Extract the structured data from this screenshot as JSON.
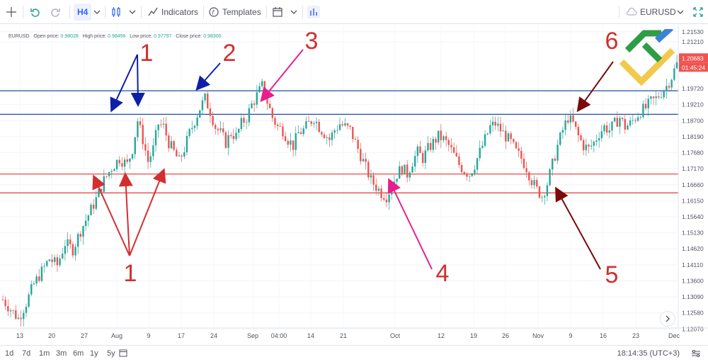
{
  "toolbar": {
    "interval": "H4",
    "indicators_label": "Indicators",
    "templates_label": "Templates",
    "symbol": "EURUSD"
  },
  "legend": {
    "symbol": "EURUSD",
    "open_label": "Open price:",
    "open_value": "0.98028",
    "high_label": "High price:",
    "high_value": "0.98456",
    "low_label": "Low price:",
    "low_value": "0.97797",
    "close_label": "Close price:",
    "close_value": "0.98300"
  },
  "bottom": {
    "ranges": [
      "1d",
      "7d",
      "1m",
      "3m",
      "6m",
      "1y",
      "5y"
    ],
    "clock": "18:14:35 (UTC+3)"
  },
  "colors": {
    "up": "#26a69a",
    "down": "#ef5350",
    "blue_level": "#1f4e9c",
    "red_level": "#e53935",
    "blue_arrow": "#0d1fa8",
    "red_arrow": "#d32f2f",
    "pink_arrow": "#e91e8c",
    "dark_arrow": "#7b0a0a"
  },
  "chart_data": {
    "type": "candlestick",
    "symbol": "EURUSD",
    "interval": "H4",
    "ylim": [
      1.121,
      1.2175
    ],
    "y_ticks": [
      "1.21530",
      "1.21210",
      "1.20683",
      "1.19720",
      "1.19210",
      "1.18700",
      "1.18190",
      "1.17680",
      "1.17170",
      "1.16660",
      "1.16150",
      "1.15640",
      "1.15130",
      "1.14620",
      "1.14110",
      "1.13600",
      "1.13090",
      "1.12580",
      "1.12070"
    ],
    "price_badge": "1.20683",
    "timer_badge": "01:45:24",
    "x_ticks": [
      "13",
      "20",
      "27",
      "Aug",
      "9",
      "17",
      "24",
      "Sep",
      "04:00",
      "14",
      "21",
      "Oct",
      "12",
      "19",
      "26",
      "Nov",
      "9",
      "16",
      "23",
      "Dec"
    ],
    "price_path": [
      [
        0,
        1.13
      ],
      [
        3,
        1.127
      ],
      [
        6,
        1.124
      ],
      [
        9,
        1.129
      ],
      [
        12,
        1.135
      ],
      [
        15,
        1.139
      ],
      [
        18,
        1.143
      ],
      [
        21,
        1.141
      ],
      [
        24,
        1.148
      ],
      [
        27,
        1.146
      ],
      [
        30,
        1.152
      ],
      [
        33,
        1.157
      ],
      [
        36,
        1.162
      ],
      [
        39,
        1.168
      ],
      [
        42,
        1.172
      ],
      [
        45,
        1.175
      ],
      [
        48,
        1.173
      ],
      [
        50,
        1.178
      ],
      [
        52,
        1.187
      ],
      [
        54,
        1.181
      ],
      [
        56,
        1.174
      ],
      [
        58,
        1.178
      ],
      [
        60,
        1.186
      ],
      [
        62,
        1.185
      ],
      [
        64,
        1.18
      ],
      [
        66,
        1.177
      ],
      [
        68,
        1.174
      ],
      [
        70,
        1.178
      ],
      [
        72,
        1.183
      ],
      [
        74,
        1.187
      ],
      [
        76,
        1.191
      ],
      [
        78,
        1.194
      ],
      [
        80,
        1.19
      ],
      [
        82,
        1.185
      ],
      [
        84,
        1.183
      ],
      [
        86,
        1.18
      ],
      [
        88,
        1.183
      ],
      [
        90,
        1.182
      ],
      [
        92,
        1.186
      ],
      [
        94,
        1.188
      ],
      [
        96,
        1.192
      ],
      [
        98,
        1.195
      ],
      [
        100,
        1.198
      ],
      [
        102,
        1.193
      ],
      [
        104,
        1.188
      ],
      [
        106,
        1.185
      ],
      [
        108,
        1.184
      ],
      [
        110,
        1.181
      ],
      [
        112,
        1.179
      ],
      [
        114,
        1.183
      ],
      [
        116,
        1.184
      ],
      [
        118,
        1.186
      ],
      [
        120,
        1.188
      ],
      [
        122,
        1.185
      ],
      [
        124,
        1.183
      ],
      [
        126,
        1.181
      ],
      [
        128,
        1.184
      ],
      [
        130,
        1.186
      ],
      [
        132,
        1.185
      ],
      [
        134,
        1.184
      ],
      [
        136,
        1.18
      ],
      [
        138,
        1.176
      ],
      [
        140,
        1.172
      ],
      [
        142,
        1.168
      ],
      [
        144,
        1.166
      ],
      [
        146,
        1.164
      ],
      [
        148,
        1.163
      ],
      [
        150,
        1.166
      ],
      [
        152,
        1.17
      ],
      [
        154,
        1.172
      ],
      [
        156,
        1.17
      ],
      [
        158,
        1.174
      ],
      [
        160,
        1.177
      ],
      [
        162,
        1.175
      ],
      [
        164,
        1.178
      ],
      [
        166,
        1.18
      ],
      [
        168,
        1.182
      ],
      [
        170,
        1.181
      ],
      [
        172,
        1.179
      ],
      [
        174,
        1.176
      ],
      [
        176,
        1.173
      ],
      [
        178,
        1.171
      ],
      [
        180,
        1.17
      ],
      [
        182,
        1.173
      ],
      [
        184,
        1.177
      ],
      [
        186,
        1.181
      ],
      [
        188,
        1.185
      ],
      [
        190,
        1.186
      ],
      [
        192,
        1.184
      ],
      [
        194,
        1.182
      ],
      [
        196,
        1.18
      ],
      [
        198,
        1.177
      ],
      [
        200,
        1.175
      ],
      [
        202,
        1.172
      ],
      [
        204,
        1.168
      ],
      [
        206,
        1.165
      ],
      [
        208,
        1.163
      ],
      [
        210,
        1.167
      ],
      [
        212,
        1.173
      ],
      [
        214,
        1.179
      ],
      [
        216,
        1.184
      ],
      [
        218,
        1.188
      ],
      [
        220,
        1.186
      ],
      [
        222,
        1.182
      ],
      [
        224,
        1.179
      ],
      [
        226,
        1.178
      ],
      [
        228,
        1.18
      ],
      [
        230,
        1.183
      ],
      [
        232,
        1.185
      ],
      [
        234,
        1.184
      ],
      [
        236,
        1.186
      ],
      [
        238,
        1.188
      ],
      [
        240,
        1.185
      ],
      [
        242,
        1.186
      ],
      [
        244,
        1.188
      ],
      [
        246,
        1.19
      ],
      [
        248,
        1.191
      ],
      [
        250,
        1.193
      ],
      [
        252,
        1.194
      ],
      [
        254,
        1.196
      ],
      [
        256,
        1.198
      ],
      [
        258,
        1.201
      ],
      [
        260,
        1.205
      ]
    ],
    "horizontal_levels": [
      {
        "price": 1.1965,
        "color": "blue"
      },
      {
        "price": 1.189,
        "color": "blue"
      },
      {
        "price": 1.17,
        "color": "red"
      },
      {
        "price": 1.164,
        "color": "red"
      }
    ],
    "annotations": [
      {
        "label": "1",
        "kind": "resistance touches"
      },
      {
        "label": "1",
        "kind": "support touches"
      },
      {
        "label": "2"
      },
      {
        "label": "3"
      },
      {
        "label": "4"
      },
      {
        "label": "5"
      },
      {
        "label": "6"
      }
    ]
  }
}
